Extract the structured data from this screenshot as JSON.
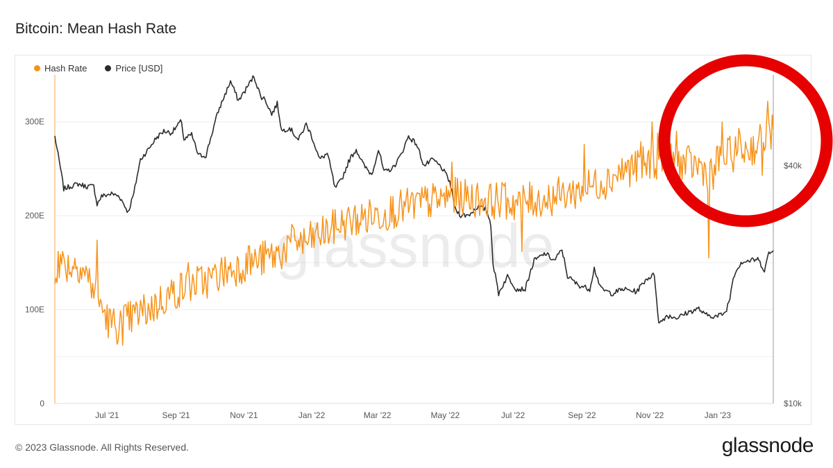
{
  "title": "Bitcoin: Mean Hash Rate",
  "legend": [
    {
      "label": "Hash Rate",
      "color": "#f7931a"
    },
    {
      "label": "Price [USD]",
      "color": "#2b2b2b"
    }
  ],
  "watermark": "glassnode",
  "footer": "© 2023 Glassnode. All Rights Reserved.",
  "logo": "glassnode",
  "annotation": {
    "shape": "circle",
    "color": "#e60000"
  },
  "chart_data": {
    "type": "line",
    "title": "Bitcoin: Mean Hash Rate",
    "x_range": [
      "2021-05-15",
      "2023-02-20"
    ],
    "x_ticks": [
      {
        "label": "Jul '21",
        "date": "2021-07-01"
      },
      {
        "label": "Sep '21",
        "date": "2021-09-01"
      },
      {
        "label": "Nov '21",
        "date": "2021-11-01"
      },
      {
        "label": "Jan '22",
        "date": "2022-01-01"
      },
      {
        "label": "Mar '22",
        "date": "2022-03-01"
      },
      {
        "label": "May '22",
        "date": "2022-05-01"
      },
      {
        "label": "Jul '22",
        "date": "2022-07-01"
      },
      {
        "label": "Sep '22",
        "date": "2022-09-01"
      },
      {
        "label": "Nov '22",
        "date": "2022-11-01"
      },
      {
        "label": "Jan '23",
        "date": "2023-01-01"
      }
    ],
    "y_left": {
      "ticks": [
        {
          "label": "0",
          "value": 0
        },
        {
          "label": "100E",
          "value": 100
        },
        {
          "label": "200E",
          "value": 200
        },
        {
          "label": "300E",
          "value": 300
        }
      ],
      "range": [
        0,
        350
      ]
    },
    "y_right": {
      "scale": "log",
      "ticks": [
        {
          "label": "$10k",
          "value": 10000
        },
        {
          "label": "$40k",
          "value": 40000
        }
      ],
      "range": [
        10000,
        68000
      ]
    },
    "grid": true,
    "legend_position": "top-left",
    "series": [
      {
        "name": "Hash Rate",
        "axis": "left",
        "color": "#f7931a",
        "points": [
          [
            "2021-05-15",
            145
          ],
          [
            "2021-05-22",
            150
          ],
          [
            "2021-05-29",
            146
          ],
          [
            "2021-06-05",
            150
          ],
          [
            "2021-06-12",
            138
          ],
          [
            "2021-06-19",
            122
          ],
          [
            "2021-06-26",
            103
          ],
          [
            "2021-07-03",
            86
          ],
          [
            "2021-07-10",
            83
          ],
          [
            "2021-07-17",
            88
          ],
          [
            "2021-07-24",
            92
          ],
          [
            "2021-07-31",
            97
          ],
          [
            "2021-08-07",
            100
          ],
          [
            "2021-08-14",
            105
          ],
          [
            "2021-08-21",
            112
          ],
          [
            "2021-08-28",
            117
          ],
          [
            "2021-09-04",
            121
          ],
          [
            "2021-09-11",
            125
          ],
          [
            "2021-09-18",
            128
          ],
          [
            "2021-09-25",
            130
          ],
          [
            "2021-10-02",
            132
          ],
          [
            "2021-10-09",
            137
          ],
          [
            "2021-10-16",
            141
          ],
          [
            "2021-10-23",
            144
          ],
          [
            "2021-10-30",
            147
          ],
          [
            "2021-11-06",
            150
          ],
          [
            "2021-11-13",
            152
          ],
          [
            "2021-11-20",
            155
          ],
          [
            "2021-11-27",
            157
          ],
          [
            "2021-12-04",
            160
          ],
          [
            "2021-12-11",
            168
          ],
          [
            "2021-12-18",
            175
          ],
          [
            "2021-12-25",
            170
          ],
          [
            "2022-01-01",
            175
          ],
          [
            "2022-01-08",
            180
          ],
          [
            "2022-01-15",
            183
          ],
          [
            "2022-01-22",
            188
          ],
          [
            "2022-01-29",
            192
          ],
          [
            "2022-02-05",
            194
          ],
          [
            "2022-02-12",
            196
          ],
          [
            "2022-02-19",
            198
          ],
          [
            "2022-02-26",
            200
          ],
          [
            "2022-03-05",
            202
          ],
          [
            "2022-03-12",
            205
          ],
          [
            "2022-03-19",
            207
          ],
          [
            "2022-03-26",
            209
          ],
          [
            "2022-04-02",
            211
          ],
          [
            "2022-04-09",
            213
          ],
          [
            "2022-04-16",
            215
          ],
          [
            "2022-04-23",
            216
          ],
          [
            "2022-04-30",
            218
          ],
          [
            "2022-05-07",
            222
          ],
          [
            "2022-05-14",
            220
          ],
          [
            "2022-05-21",
            219
          ],
          [
            "2022-05-28",
            218
          ],
          [
            "2022-06-04",
            217
          ],
          [
            "2022-06-11",
            216
          ],
          [
            "2022-06-18",
            217
          ],
          [
            "2022-06-25",
            215
          ],
          [
            "2022-07-02",
            214
          ],
          [
            "2022-07-09",
            215
          ],
          [
            "2022-07-16",
            216
          ],
          [
            "2022-07-23",
            217
          ],
          [
            "2022-07-30",
            217
          ],
          [
            "2022-08-06",
            220
          ],
          [
            "2022-08-13",
            222
          ],
          [
            "2022-08-20",
            224
          ],
          [
            "2022-08-27",
            226
          ],
          [
            "2022-09-03",
            229
          ],
          [
            "2022-09-10",
            232
          ],
          [
            "2022-09-17",
            236
          ],
          [
            "2022-09-24",
            238
          ],
          [
            "2022-10-01",
            244
          ],
          [
            "2022-10-08",
            248
          ],
          [
            "2022-10-15",
            251
          ],
          [
            "2022-10-22",
            252
          ],
          [
            "2022-10-29",
            255
          ],
          [
            "2022-11-05",
            257
          ],
          [
            "2022-11-12",
            259
          ],
          [
            "2022-11-19",
            258
          ],
          [
            "2022-11-26",
            257
          ],
          [
            "2022-12-03",
            255
          ],
          [
            "2022-12-10",
            254
          ],
          [
            "2022-12-17",
            252
          ],
          [
            "2022-12-24",
            245
          ],
          [
            "2022-12-31",
            256
          ],
          [
            "2023-01-07",
            262
          ],
          [
            "2023-01-14",
            266
          ],
          [
            "2023-01-21",
            269
          ],
          [
            "2023-01-28",
            271
          ],
          [
            "2023-02-04",
            274
          ],
          [
            "2023-02-11",
            283
          ],
          [
            "2023-02-18",
            290
          ]
        ],
        "noise": 20,
        "extremes": [
          [
            "2021-05-18",
            162
          ],
          [
            "2021-06-22",
            174
          ],
          [
            "2021-07-15",
            62
          ],
          [
            "2021-09-12",
            150
          ],
          [
            "2021-11-05",
            168
          ],
          [
            "2021-12-12",
            175
          ],
          [
            "2022-02-23",
            210
          ],
          [
            "2022-05-07",
            257
          ],
          [
            "2022-06-24",
            235
          ],
          [
            "2022-07-09",
            162
          ],
          [
            "2022-08-23",
            225
          ],
          [
            "2022-09-03",
            276
          ],
          [
            "2022-10-24",
            279
          ],
          [
            "2022-11-03",
            300
          ],
          [
            "2022-11-08",
            288
          ],
          [
            "2022-11-25",
            290
          ],
          [
            "2022-12-24",
            155
          ],
          [
            "2022-12-28",
            228
          ],
          [
            "2023-01-05",
            300
          ],
          [
            "2023-01-20",
            293
          ],
          [
            "2023-02-10",
            243
          ],
          [
            "2023-02-15",
            322
          ],
          [
            "2023-02-20",
            292
          ]
        ]
      },
      {
        "name": "Price [USD]",
        "axis": "right",
        "color": "#2b2b2b",
        "points": [
          [
            "2021-05-15",
            47500
          ],
          [
            "2021-05-18",
            42500
          ],
          [
            "2021-05-23",
            35000
          ],
          [
            "2021-05-29",
            35500
          ],
          [
            "2021-06-05",
            36000
          ],
          [
            "2021-06-12",
            35500
          ],
          [
            "2021-06-19",
            35500
          ],
          [
            "2021-06-22",
            32000
          ],
          [
            "2021-06-26",
            33500
          ],
          [
            "2021-07-05",
            34000
          ],
          [
            "2021-07-12",
            33500
          ],
          [
            "2021-07-20",
            30500
          ],
          [
            "2021-07-25",
            34000
          ],
          [
            "2021-07-31",
            41500
          ],
          [
            "2021-08-07",
            44000
          ],
          [
            "2021-08-14",
            47000
          ],
          [
            "2021-08-21",
            49000
          ],
          [
            "2021-08-28",
            48500
          ],
          [
            "2021-09-06",
            52000
          ],
          [
            "2021-09-08",
            46500
          ],
          [
            "2021-09-15",
            48000
          ],
          [
            "2021-09-21",
            42500
          ],
          [
            "2021-09-28",
            42500
          ],
          [
            "2021-10-03",
            48000
          ],
          [
            "2021-10-09",
            55000
          ],
          [
            "2021-10-16",
            61500
          ],
          [
            "2021-10-20",
            65500
          ],
          [
            "2021-10-27",
            58500
          ],
          [
            "2021-11-02",
            62000
          ],
          [
            "2021-11-10",
            67500
          ],
          [
            "2021-11-16",
            60000
          ],
          [
            "2021-11-20",
            59000
          ],
          [
            "2021-11-26",
            54000
          ],
          [
            "2021-12-01",
            57500
          ],
          [
            "2021-12-05",
            49000
          ],
          [
            "2021-12-12",
            50000
          ],
          [
            "2021-12-20",
            46500
          ],
          [
            "2021-12-27",
            51000
          ],
          [
            "2022-01-01",
            47500
          ],
          [
            "2022-01-08",
            41500
          ],
          [
            "2022-01-15",
            43000
          ],
          [
            "2022-01-22",
            35000
          ],
          [
            "2022-01-28",
            37000
          ],
          [
            "2022-02-04",
            41500
          ],
          [
            "2022-02-10",
            44000
          ],
          [
            "2022-02-17",
            40000
          ],
          [
            "2022-02-24",
            38000
          ],
          [
            "2022-03-02",
            44000
          ],
          [
            "2022-03-07",
            38500
          ],
          [
            "2022-03-15",
            39500
          ],
          [
            "2022-03-22",
            42500
          ],
          [
            "2022-03-29",
            47500
          ],
          [
            "2022-04-05",
            45500
          ],
          [
            "2022-04-12",
            40000
          ],
          [
            "2022-04-20",
            41500
          ],
          [
            "2022-04-28",
            39500
          ],
          [
            "2022-05-05",
            36500
          ],
          [
            "2022-05-10",
            31000
          ],
          [
            "2022-05-15",
            30000
          ],
          [
            "2022-05-22",
            30000
          ],
          [
            "2022-05-30",
            31500
          ],
          [
            "2022-06-07",
            31000
          ],
          [
            "2022-06-11",
            28500
          ],
          [
            "2022-06-13",
            22500
          ],
          [
            "2022-06-18",
            19000
          ],
          [
            "2022-06-26",
            21000
          ],
          [
            "2022-07-04",
            19500
          ],
          [
            "2022-07-12",
            19500
          ],
          [
            "2022-07-20",
            23000
          ],
          [
            "2022-07-30",
            24000
          ],
          [
            "2022-08-07",
            23000
          ],
          [
            "2022-08-14",
            24500
          ],
          [
            "2022-08-19",
            21000
          ],
          [
            "2022-08-28",
            20000
          ],
          [
            "2022-09-08",
            19500
          ],
          [
            "2022-09-12",
            22000
          ],
          [
            "2022-09-18",
            19500
          ],
          [
            "2022-09-28",
            19000
          ],
          [
            "2022-10-08",
            19500
          ],
          [
            "2022-10-20",
            19200
          ],
          [
            "2022-10-29",
            20700
          ],
          [
            "2022-11-05",
            21200
          ],
          [
            "2022-11-09",
            15900
          ],
          [
            "2022-11-16",
            16700
          ],
          [
            "2022-11-26",
            16500
          ],
          [
            "2022-12-05",
            17000
          ],
          [
            "2022-12-15",
            17400
          ],
          [
            "2022-12-20",
            16800
          ],
          [
            "2022-12-31",
            16600
          ],
          [
            "2023-01-08",
            17000
          ],
          [
            "2023-01-12",
            18500
          ],
          [
            "2023-01-15",
            21000
          ],
          [
            "2023-01-22",
            22800
          ],
          [
            "2023-01-30",
            23000
          ],
          [
            "2023-02-06",
            23200
          ],
          [
            "2023-02-12",
            21800
          ],
          [
            "2023-02-16",
            24000
          ],
          [
            "2023-02-20",
            24300
          ]
        ],
        "noise": 0.03
      }
    ]
  }
}
